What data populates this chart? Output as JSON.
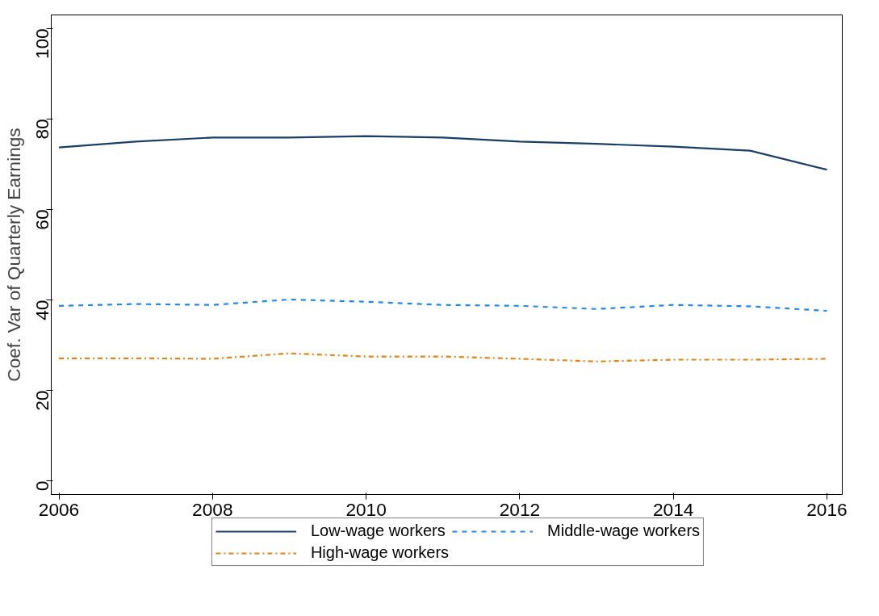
{
  "chart_data": {
    "type": "line",
    "ylabel": "Coef. Var of Quarterly Earnings",
    "x": [
      2006,
      2007,
      2008,
      2009,
      2010,
      2011,
      2012,
      2013,
      2014,
      2015,
      2016
    ],
    "xlim": [
      2005.9,
      2016.2
    ],
    "ylim": [
      -3,
      103
    ],
    "xticks": [
      2006,
      2008,
      2010,
      2012,
      2014,
      2016
    ],
    "yticks": [
      0,
      20,
      40,
      60,
      80,
      100
    ],
    "grid": false,
    "legend": "bottom",
    "marker": "none",
    "series": [
      {
        "name": "Low-wage workers",
        "color": "#1a3f66",
        "line_style": "solid",
        "values": [
          73.7,
          75.0,
          75.9,
          75.9,
          76.2,
          75.9,
          75.0,
          74.5,
          73.9,
          73.0,
          68.8
        ]
      },
      {
        "name": "Middle-wage workers",
        "color": "#1e88f0",
        "line_style": "dashed",
        "values": [
          38.7,
          39.1,
          38.9,
          40.1,
          39.6,
          38.9,
          38.7,
          38.0,
          38.9,
          38.6,
          37.6
        ]
      },
      {
        "name": "High-wage workers",
        "color": "#e8820c",
        "line_style": "dashdot",
        "values": [
          27.1,
          27.1,
          27.0,
          28.2,
          27.5,
          27.5,
          27.0,
          26.4,
          26.8,
          26.8,
          27.0
        ]
      }
    ]
  }
}
